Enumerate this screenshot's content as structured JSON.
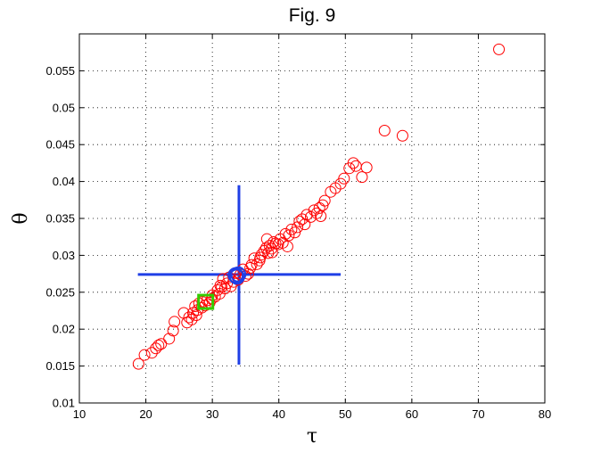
{
  "chart_data": {
    "type": "scatter",
    "title": "Fig. 9",
    "xlabel": "τ",
    "ylabel": "θ",
    "xlim": [
      10,
      80
    ],
    "ylim": [
      0.01,
      0.06
    ],
    "x_ticks": [
      10,
      20,
      30,
      40,
      50,
      60,
      70,
      80
    ],
    "y_ticks": [
      0.01,
      0.015,
      0.02,
      0.025,
      0.03,
      0.035,
      0.04,
      0.045,
      0.05,
      0.055
    ],
    "x_tick_labels": [
      "10",
      "20",
      "30",
      "40",
      "50",
      "60",
      "70",
      "80"
    ],
    "y_tick_labels": [
      "0.01",
      "0.015",
      "0.02",
      "0.025",
      "0.03",
      "0.035",
      "0.04",
      "0.045",
      "0.05",
      "0.055"
    ],
    "grid": true,
    "grid_style": "dotted",
    "colors": {
      "samples": "#ff0000",
      "mean": "#1f3fe6",
      "reference": "#33cc00",
      "crosshair": "#1f3fe6"
    },
    "series": [
      {
        "marker": "circle",
        "color": "#ff0000",
        "points": [
          [
            18.9,
            0.0153
          ],
          [
            19.8,
            0.0165
          ],
          [
            20.9,
            0.0168
          ],
          [
            21.5,
            0.0174
          ],
          [
            21.9,
            0.0178
          ],
          [
            22.3,
            0.018
          ],
          [
            23.5,
            0.0187
          ],
          [
            24.3,
            0.021
          ],
          [
            25.7,
            0.0222
          ],
          [
            26.2,
            0.0209
          ],
          [
            26.5,
            0.0216
          ],
          [
            26.9,
            0.0213
          ],
          [
            27.1,
            0.0222
          ],
          [
            27.4,
            0.0231
          ],
          [
            27.8,
            0.0226
          ],
          [
            28.0,
            0.0235
          ],
          [
            28.5,
            0.0237
          ],
          [
            28.9,
            0.0232
          ],
          [
            29.2,
            0.0239
          ],
          [
            29.6,
            0.0236
          ],
          [
            30.0,
            0.0246
          ],
          [
            30.4,
            0.0244
          ],
          [
            30.8,
            0.0253
          ],
          [
            31.1,
            0.0248
          ],
          [
            31.4,
            0.0257
          ],
          [
            31.6,
            0.0268
          ],
          [
            31.9,
            0.0255
          ],
          [
            32.2,
            0.0262
          ],
          [
            32.5,
            0.027
          ],
          [
            32.8,
            0.0258
          ],
          [
            33.2,
            0.0264
          ],
          [
            33.5,
            0.0276
          ],
          [
            33.9,
            0.0267
          ],
          [
            34.2,
            0.0274
          ],
          [
            34.6,
            0.0281
          ],
          [
            35.0,
            0.0272
          ],
          [
            35.4,
            0.0275
          ],
          [
            35.9,
            0.0287
          ],
          [
            36.3,
            0.0296
          ],
          [
            36.7,
            0.0288
          ],
          [
            37.1,
            0.0293
          ],
          [
            37.4,
            0.0301
          ],
          [
            37.8,
            0.0306
          ],
          [
            38.1,
            0.031
          ],
          [
            38.2,
            0.0322
          ],
          [
            38.4,
            0.0303
          ],
          [
            38.6,
            0.0313
          ],
          [
            38.9,
            0.0309
          ],
          [
            39.2,
            0.0318
          ],
          [
            39.5,
            0.0316
          ],
          [
            39.9,
            0.0315
          ],
          [
            40.2,
            0.0322
          ],
          [
            40.6,
            0.0317
          ],
          [
            41.0,
            0.0329
          ],
          [
            41.5,
            0.0327
          ],
          [
            41.9,
            0.0335
          ],
          [
            42.4,
            0.0331
          ],
          [
            42.8,
            0.0338
          ],
          [
            43.1,
            0.0346
          ],
          [
            43.5,
            0.0349
          ],
          [
            44.2,
            0.0355
          ],
          [
            44.8,
            0.0352
          ],
          [
            45.3,
            0.0361
          ],
          [
            45.7,
            0.0357
          ],
          [
            46.1,
            0.0364
          ],
          [
            46.3,
            0.0353
          ],
          [
            46.6,
            0.0368
          ],
          [
            46.9,
            0.0374
          ],
          [
            47.8,
            0.0386
          ],
          [
            48.5,
            0.0391
          ],
          [
            49.3,
            0.0397
          ],
          [
            49.8,
            0.0404
          ],
          [
            50.6,
            0.0418
          ],
          [
            51.2,
            0.0425
          ],
          [
            51.6,
            0.0421
          ],
          [
            52.5,
            0.0406
          ],
          [
            53.2,
            0.0419
          ],
          [
            55.9,
            0.0469
          ],
          [
            58.6,
            0.0462
          ],
          [
            73.1,
            0.0579
          ],
          [
            24.1,
            0.0198
          ],
          [
            27.6,
            0.0219
          ],
          [
            29.9,
            0.0241
          ],
          [
            35.7,
            0.0283
          ],
          [
            41.3,
            0.0312
          ],
          [
            43.9,
            0.0342
          ],
          [
            31.2,
            0.0259
          ],
          [
            37.2,
            0.0297
          ],
          [
            39.0,
            0.0304
          ],
          [
            28.4,
            0.0229
          ]
        ]
      },
      {
        "marker": "circle-large",
        "color": "#1f3fe6",
        "points": [
          [
            33.9,
            0.0274
          ],
          [
            33.7,
            0.0271
          ],
          [
            33.5,
            0.0273
          ]
        ]
      },
      {
        "marker": "square",
        "color": "#33cc00",
        "points": [
          [
            29.0,
            0.0237
          ]
        ]
      }
    ],
    "crosshair": {
      "color": "#1f3fe6",
      "x_center": 34.0,
      "y_center": 0.0274,
      "x_range": [
        18.8,
        49.3
      ],
      "y_range": [
        0.0152,
        0.0395
      ]
    }
  }
}
